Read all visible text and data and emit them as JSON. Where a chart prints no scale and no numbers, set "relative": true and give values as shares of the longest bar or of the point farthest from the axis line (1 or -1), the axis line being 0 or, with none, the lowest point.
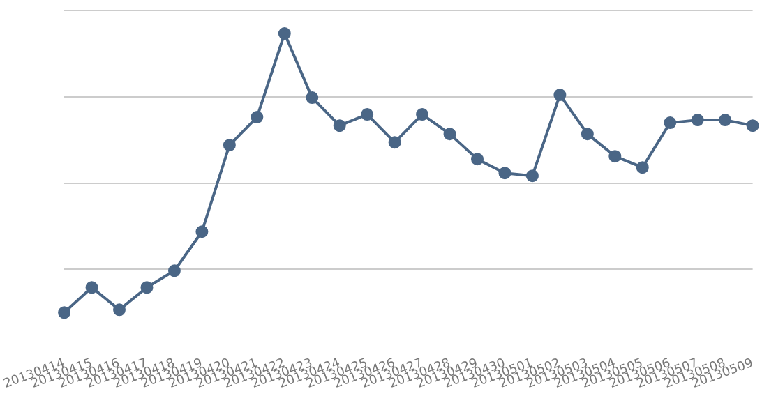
{
  "chart_data": {
    "type": "line",
    "relative": true,
    "grid": "y",
    "marker": "circle",
    "line_style": "solid",
    "legend": false,
    "categories": [
      "20130414",
      "20130415",
      "20130416",
      "20130417",
      "20130418",
      "20130419",
      "20130420",
      "20130421",
      "20130422",
      "20130423",
      "20130424",
      "20130425",
      "20130426",
      "20130427",
      "20130428",
      "20130429",
      "20130430",
      "20130501",
      "20130502",
      "20130503",
      "20130504",
      "20130505",
      "20130506",
      "20130507",
      "20130508",
      "20130509"
    ],
    "series": [
      {
        "color": "#4a6686",
        "values": [
          0,
          0.09,
          0.01,
          0.09,
          0.15,
          0.29,
          0.6,
          0.7,
          1,
          0.77,
          0.67,
          0.71,
          0.61,
          0.71,
          0.64,
          0.55,
          0.5,
          0.49,
          0.78,
          0.64,
          0.56,
          0.52,
          0.68,
          0.69,
          0.69,
          0.67
        ]
      }
    ]
  }
}
